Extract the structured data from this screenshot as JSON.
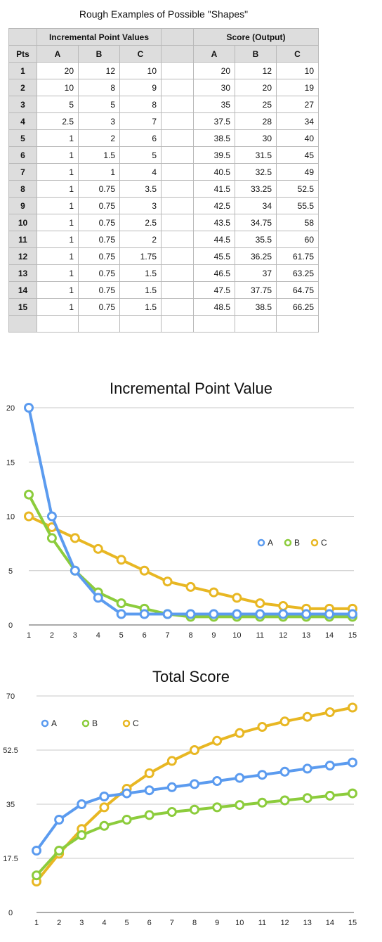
{
  "table": {
    "title": "Rough Examples of Possible \"Shapes\"",
    "group_headers": [
      "Incremental Point Values",
      "Score (Output)"
    ],
    "corner_header": "Pts",
    "col_headers": [
      "A",
      "B",
      "C",
      "A",
      "B",
      "C"
    ],
    "rows": [
      {
        "pts": "1",
        "inc": [
          "20",
          "12",
          "10"
        ],
        "score": [
          "20",
          "12",
          "10"
        ]
      },
      {
        "pts": "2",
        "inc": [
          "10",
          "8",
          "9"
        ],
        "score": [
          "30",
          "20",
          "19"
        ]
      },
      {
        "pts": "3",
        "inc": [
          "5",
          "5",
          "8"
        ],
        "score": [
          "35",
          "25",
          "27"
        ]
      },
      {
        "pts": "4",
        "inc": [
          "2.5",
          "3",
          "7"
        ],
        "score": [
          "37.5",
          "28",
          "34"
        ]
      },
      {
        "pts": "5",
        "inc": [
          "1",
          "2",
          "6"
        ],
        "score": [
          "38.5",
          "30",
          "40"
        ]
      },
      {
        "pts": "6",
        "inc": [
          "1",
          "1.5",
          "5"
        ],
        "score": [
          "39.5",
          "31.5",
          "45"
        ]
      },
      {
        "pts": "7",
        "inc": [
          "1",
          "1",
          "4"
        ],
        "score": [
          "40.5",
          "32.5",
          "49"
        ]
      },
      {
        "pts": "8",
        "inc": [
          "1",
          "0.75",
          "3.5"
        ],
        "score": [
          "41.5",
          "33.25",
          "52.5"
        ]
      },
      {
        "pts": "9",
        "inc": [
          "1",
          "0.75",
          "3"
        ],
        "score": [
          "42.5",
          "34",
          "55.5"
        ]
      },
      {
        "pts": "10",
        "inc": [
          "1",
          "0.75",
          "2.5"
        ],
        "score": [
          "43.5",
          "34.75",
          "58"
        ]
      },
      {
        "pts": "11",
        "inc": [
          "1",
          "0.75",
          "2"
        ],
        "score": [
          "44.5",
          "35.5",
          "60"
        ]
      },
      {
        "pts": "12",
        "inc": [
          "1",
          "0.75",
          "1.75"
        ],
        "score": [
          "45.5",
          "36.25",
          "61.75"
        ]
      },
      {
        "pts": "13",
        "inc": [
          "1",
          "0.75",
          "1.5"
        ],
        "score": [
          "46.5",
          "37",
          "63.25"
        ]
      },
      {
        "pts": "14",
        "inc": [
          "1",
          "0.75",
          "1.5"
        ],
        "score": [
          "47.5",
          "37.75",
          "64.75"
        ]
      },
      {
        "pts": "15",
        "inc": [
          "1",
          "0.75",
          "1.5"
        ],
        "score": [
          "48.5",
          "38.5",
          "66.25"
        ]
      }
    ]
  },
  "chart_data": [
    {
      "type": "line",
      "title": "Incremental Point Value",
      "xlabel": "",
      "ylabel": "",
      "x": [
        1,
        2,
        3,
        4,
        5,
        6,
        7,
        8,
        9,
        10,
        11,
        12,
        13,
        14,
        15
      ],
      "ylim": [
        0,
        20
      ],
      "yticks": [
        0,
        5,
        10,
        15,
        20
      ],
      "grid": true,
      "legend": "right",
      "series": [
        {
          "name": "A",
          "color": "#5b9bef",
          "values": [
            20,
            10,
            5,
            2.5,
            1,
            1,
            1,
            1,
            1,
            1,
            1,
            1,
            1,
            1,
            1
          ]
        },
        {
          "name": "B",
          "color": "#8ccc3c",
          "values": [
            12,
            8,
            5,
            3,
            2,
            1.5,
            1,
            0.75,
            0.75,
            0.75,
            0.75,
            0.75,
            0.75,
            0.75,
            0.75
          ]
        },
        {
          "name": "C",
          "color": "#e8b723",
          "values": [
            10,
            9,
            8,
            7,
            6,
            5,
            4,
            3.5,
            3,
            2.5,
            2,
            1.75,
            1.5,
            1.5,
            1.5
          ]
        }
      ]
    },
    {
      "type": "line",
      "title": "Total Score",
      "xlabel": "",
      "ylabel": "",
      "x": [
        1,
        2,
        3,
        4,
        5,
        6,
        7,
        8,
        9,
        10,
        11,
        12,
        13,
        14,
        15
      ],
      "ylim": [
        0,
        70
      ],
      "yticks": [
        0,
        17.5,
        35,
        52.5,
        70
      ],
      "grid": true,
      "legend": "top-left",
      "series": [
        {
          "name": "A",
          "color": "#5b9bef",
          "values": [
            20,
            30,
            35,
            37.5,
            38.5,
            39.5,
            40.5,
            41.5,
            42.5,
            43.5,
            44.5,
            45.5,
            46.5,
            47.5,
            48.5
          ]
        },
        {
          "name": "B",
          "color": "#8ccc3c",
          "values": [
            12,
            20,
            25,
            28,
            30,
            31.5,
            32.5,
            33.25,
            34,
            34.75,
            35.5,
            36.25,
            37,
            37.75,
            38.5
          ]
        },
        {
          "name": "C",
          "color": "#e8b723",
          "values": [
            10,
            19,
            27,
            34,
            40,
            45,
            49,
            52.5,
            55.5,
            58,
            60,
            61.75,
            63.25,
            64.75,
            66.25
          ]
        }
      ]
    }
  ]
}
